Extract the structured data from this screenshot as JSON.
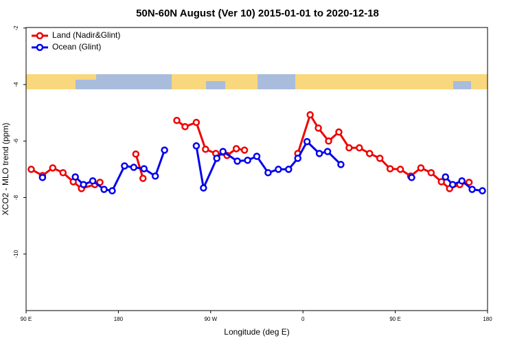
{
  "chart_data": {
    "type": "line",
    "title": "50N-60N August (Ver 10)   2015-01-01 to 2020-12-18",
    "xlabel": "Longitude (deg E)",
    "ylabel": "XCO2 - MLO trend (ppm)",
    "xlim": [
      90,
      540
    ],
    "xticks": [
      {
        "value": 90,
        "label": "90 E"
      },
      180,
      {
        "value": 270,
        "label": "90 W"
      },
      {
        "value": 360,
        "label": "0"
      },
      {
        "value": 450,
        "label": "90 E"
      },
      {
        "value": 540,
        "label": "180"
      }
    ],
    "ylim": [
      -12,
      -1.98
    ],
    "yticks": [
      -2,
      -4,
      -6,
      -8,
      -10
    ],
    "legend": "top-left",
    "series": [
      {
        "name": "Land (Nadir&Glint)",
        "color": "#ee0000",
        "x": [
          95,
          106,
          116,
          126,
          136,
          144,
          157,
          162,
          null,
          197,
          204,
          null,
          237,
          245,
          256,
          265,
          275,
          286,
          295,
          303,
          null,
          355,
          367,
          375,
          385,
          395,
          405,
          415,
          425,
          435,
          445,
          455,
          465,
          475,
          485,
          495,
          503,
          513,
          522
        ],
        "values": [
          -7.0,
          -7.22,
          -6.95,
          -7.12,
          -7.44,
          -7.68,
          -7.54,
          -7.46,
          null,
          -6.46,
          -7.32,
          null,
          -5.27,
          -5.49,
          -5.34,
          -6.29,
          -6.44,
          -6.51,
          -6.27,
          -6.32,
          null,
          -6.44,
          -5.07,
          -5.54,
          -6.0,
          -5.68,
          -6.24,
          -6.24,
          -6.44,
          -6.61,
          -6.98,
          -7.0,
          -7.24,
          -6.95,
          -7.12,
          -7.44,
          -7.68,
          -7.54,
          -7.46
        ]
      },
      {
        "name": "Ocean (Glint)",
        "color": "#0000ee",
        "x": [
          106,
          null,
          138,
          146,
          155,
          166,
          174,
          186,
          195,
          205,
          216,
          225,
          null,
          256,
          263,
          276,
          282,
          296,
          306,
          315,
          326,
          336,
          346,
          355,
          364,
          376,
          384,
          397,
          null,
          466,
          null,
          499,
          506,
          515,
          525,
          535
        ],
        "values": [
          -7.29,
          null,
          -7.27,
          -7.54,
          -7.41,
          -7.71,
          -7.76,
          -6.88,
          -6.93,
          -6.98,
          -7.24,
          -6.32,
          null,
          -6.17,
          -7.66,
          -6.61,
          -6.37,
          -6.71,
          -6.68,
          -6.54,
          -7.12,
          -7.0,
          -7.0,
          -6.61,
          -6.02,
          -6.44,
          -6.37,
          -6.83,
          null,
          -7.29,
          null,
          -7.27,
          -7.54,
          -7.41,
          -7.71,
          -7.76
        ]
      }
    ]
  }
}
